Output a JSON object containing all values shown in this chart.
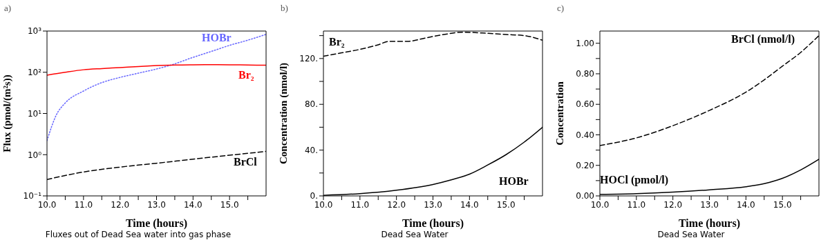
{
  "chart_data": [
    {
      "type": "line",
      "title": "a)",
      "xlabel": "Time (hours)",
      "ylabel": "Flux (pmol/(m²s))",
      "log": "y",
      "xlim": [
        10,
        16
      ],
      "xticks": [
        {
          "value": 10,
          "label": "10.0"
        },
        {
          "value": 10.5,
          "label": null
        },
        {
          "value": 11,
          "label": "11.0"
        },
        {
          "value": 11.5,
          "label": null
        },
        {
          "value": 12,
          "label": "12.0"
        },
        {
          "value": 12.5,
          "label": null
        },
        {
          "value": 13,
          "label": "13.0"
        },
        {
          "value": 13.5,
          "label": null
        },
        {
          "value": 14,
          "label": "14.0"
        },
        {
          "value": 14.5,
          "label": null
        },
        {
          "value": 15,
          "label": "15.0"
        },
        {
          "value": 15.5,
          "label": null
        }
      ],
      "ylim": [
        0.1,
        1000
      ],
      "yticks": [
        {
          "value": 0.1,
          "label": "10⁻¹"
        },
        {
          "value": 1,
          "label": "10⁰"
        },
        {
          "value": 10,
          "label": "10¹"
        },
        {
          "value": 100,
          "label": "10²"
        },
        {
          "value": 1000,
          "label": "10³"
        }
      ],
      "annotations": [
        "Fluxes out of Dead Sea water into gas phase"
      ],
      "series": [
        {
          "name": "HOBr",
          "color": "#6666ff",
          "line_style": "dotted",
          "x": [
            10,
            10.25,
            10.5,
            11,
            11.5,
            12,
            12.5,
            13,
            13.4,
            14,
            14.5,
            15,
            15.5,
            16
          ],
          "values": [
            2.2,
            9,
            18,
            35,
            56,
            75,
            95,
            120,
            150,
            230,
            320,
            450,
            600,
            830
          ]
        },
        {
          "name": "Br₂",
          "color": "#ff0000",
          "line_style": "solid",
          "x": [
            10,
            10.5,
            11,
            11.5,
            12,
            12.5,
            13,
            13.5,
            14,
            14.5,
            15,
            15.5,
            16
          ],
          "values": [
            85,
            100,
            115,
            123,
            130,
            138,
            145,
            150,
            152,
            153,
            152,
            150,
            148
          ]
        },
        {
          "name": "BrCl",
          "color": "#000000",
          "line_style": "dashed",
          "x": [
            10,
            11,
            12,
            13,
            14,
            15,
            16
          ],
          "values": [
            0.25,
            0.38,
            0.5,
            0.62,
            0.78,
            0.97,
            1.2
          ]
        }
      ]
    },
    {
      "type": "line",
      "title": "b)",
      "xlabel": "Time (hours)",
      "ylabel": "Concentration (nmol/l)",
      "xlim": [
        10,
        16
      ],
      "xticks": [
        {
          "value": 10,
          "label": "10.0"
        },
        {
          "value": 10.5,
          "label": null
        },
        {
          "value": 11,
          "label": "11.0"
        },
        {
          "value": 11.5,
          "label": null
        },
        {
          "value": 12,
          "label": "12.0"
        },
        {
          "value": 12.5,
          "label": null
        },
        {
          "value": 13,
          "label": "13.0"
        },
        {
          "value": 13.5,
          "label": null
        },
        {
          "value": 14,
          "label": "14.0"
        },
        {
          "value": 14.5,
          "label": null
        },
        {
          "value": 15,
          "label": "15.0"
        },
        {
          "value": 15.5,
          "label": null
        }
      ],
      "ylim": [
        0,
        144
      ],
      "yticks": [
        {
          "value": 0,
          "label": "0."
        },
        {
          "value": 20,
          "label": null
        },
        {
          "value": 40,
          "label": "40."
        },
        {
          "value": 60,
          "label": null
        },
        {
          "value": 80,
          "label": "80."
        },
        {
          "value": 100,
          "label": null
        },
        {
          "value": 120,
          "label": "120."
        },
        {
          "value": 140,
          "label": null
        }
      ],
      "annotations": [
        "Dead Sea Water"
      ],
      "series": [
        {
          "name": "Br₂",
          "color": "#000000",
          "line_style": "dashed",
          "x": [
            10,
            10.5,
            11,
            11.5,
            11.8,
            12.3,
            12.8,
            13.3,
            13.8,
            14.5,
            15,
            15.5,
            16
          ],
          "values": [
            122,
            125,
            128,
            132,
            135,
            135,
            138,
            141,
            143,
            142,
            141,
            140,
            136
          ]
        },
        {
          "name": "HOBr",
          "color": "#000000",
          "line_style": "solid",
          "x": [
            10,
            11,
            12,
            13,
            13.5,
            14,
            14.5,
            15,
            15.5,
            16
          ],
          "values": [
            0.5,
            2,
            5,
            10,
            14,
            19,
            27,
            36,
            47,
            60
          ]
        }
      ]
    },
    {
      "type": "line",
      "title": "c)",
      "xlabel": "Time (hours)",
      "ylabel": "Concentration",
      "xlim": [
        10,
        16
      ],
      "xticks": [
        {
          "value": 10,
          "label": "10.0"
        },
        {
          "value": 10.5,
          "label": null
        },
        {
          "value": 11,
          "label": "11.0"
        },
        {
          "value": 11.5,
          "label": null
        },
        {
          "value": 12,
          "label": "12.0"
        },
        {
          "value": 12.5,
          "label": null
        },
        {
          "value": 13,
          "label": "13.0"
        },
        {
          "value": 13.5,
          "label": null
        },
        {
          "value": 14,
          "label": "14.0"
        },
        {
          "value": 14.5,
          "label": null
        },
        {
          "value": 15,
          "label": "15.0"
        },
        {
          "value": 15.5,
          "label": null
        }
      ],
      "ylim": [
        0,
        1.08
      ],
      "yticks": [
        {
          "value": 0,
          "label": "0.00"
        },
        {
          "value": 0.1,
          "label": null
        },
        {
          "value": 0.2,
          "label": "0.20"
        },
        {
          "value": 0.3,
          "label": null
        },
        {
          "value": 0.4,
          "label": "0.40"
        },
        {
          "value": 0.5,
          "label": null
        },
        {
          "value": 0.6,
          "label": "0.60"
        },
        {
          "value": 0.7,
          "label": null
        },
        {
          "value": 0.8,
          "label": "0.80"
        },
        {
          "value": 0.9,
          "label": null
        },
        {
          "value": 1,
          "label": "1.00"
        }
      ],
      "annotations": [
        "Dead Sea Water"
      ],
      "series": [
        {
          "name": "BrCl (nmol/l)",
          "color": "#000000",
          "line_style": "dashed",
          "x": [
            10,
            11,
            12,
            13,
            14,
            14.5,
            15,
            15.5,
            16
          ],
          "values": [
            0.33,
            0.38,
            0.46,
            0.56,
            0.68,
            0.76,
            0.85,
            0.94,
            1.05
          ]
        },
        {
          "name": "HOCl (pmol/l)",
          "color": "#000000",
          "line_style": "solid",
          "x": [
            10,
            11,
            12,
            13,
            14,
            14.5,
            15,
            15.5,
            16
          ],
          "values": [
            0.01,
            0.015,
            0.025,
            0.04,
            0.06,
            0.08,
            0.115,
            0.17,
            0.24
          ]
        }
      ]
    }
  ]
}
